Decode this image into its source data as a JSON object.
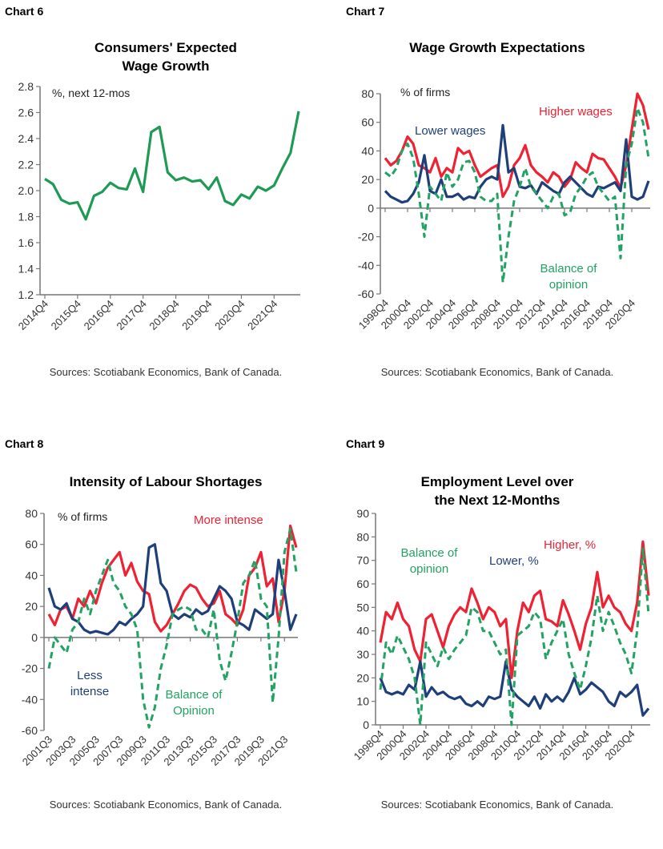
{
  "colors": {
    "green_solid": "#1f9a55",
    "green_dash": "#22a263",
    "red": "#ee2233",
    "blue": "#1f3f7a",
    "axis": "#777777"
  },
  "chart_data": [
    {
      "chart_no": "Chart 6",
      "type": "line",
      "title": [
        "Consumers' Expected",
        "Wage Growth"
      ],
      "ylabel": "%, next 12-mos",
      "ylim": [
        1.2,
        2.8
      ],
      "yticks": [
        "1.2",
        "1.4",
        "1.6",
        "1.8",
        "2.0",
        "2.2",
        "2.4",
        "2.6",
        "2.8"
      ],
      "xtick_labels": [
        "2014Q4",
        "2015Q4",
        "2016Q4",
        "2017Q4",
        "2018Q4",
        "2019Q4",
        "2020Q4",
        "2021Q4"
      ],
      "xtick_every": 4,
      "series": [
        {
          "name": "Expected wage growth",
          "color": "green_solid",
          "dash": false,
          "values": [
            2.09,
            2.05,
            1.93,
            1.9,
            1.91,
            1.78,
            1.96,
            1.99,
            2.06,
            2.02,
            2.01,
            2.17,
            1.99,
            2.45,
            2.49,
            2.14,
            2.08,
            2.1,
            2.07,
            2.08,
            2.01,
            2.1,
            1.92,
            1.89,
            1.97,
            1.94,
            2.03,
            2.0,
            2.04,
            2.17,
            2.29,
            2.61
          ]
        }
      ],
      "annotations": [],
      "source": "Sources: Scotiabank Economics, Bank of Canada."
    },
    {
      "chart_no": "Chart 7",
      "type": "line",
      "title": [
        "Wage Growth Expectations"
      ],
      "ylabel": "% of firms",
      "ylim": [
        -60,
        80
      ],
      "yticks": [
        "-60",
        "-40",
        "-20",
        "0",
        "20",
        "40",
        "60",
        "80"
      ],
      "xtick_labels": [
        "1998Q4",
        "2000Q4",
        "2002Q4",
        "2004Q4",
        "2006Q4",
        "2008Q4",
        "2010Q4",
        "2012Q4",
        "2014Q4",
        "2016Q4",
        "2018Q4",
        "2020Q4"
      ],
      "xtick_every": 4,
      "series": [
        {
          "name": "Higher wages",
          "color": "red",
          "dash": false,
          "values": [
            35,
            30,
            33,
            40,
            50,
            45,
            30,
            28,
            25,
            35,
            22,
            28,
            25,
            42,
            38,
            40,
            30,
            22,
            25,
            28,
            30,
            8,
            15,
            30,
            35,
            44,
            30,
            25,
            22,
            18,
            25,
            22,
            15,
            20,
            32,
            28,
            25,
            38,
            35,
            34,
            28,
            22,
            14,
            30,
            55,
            80,
            72,
            55
          ]
        },
        {
          "name": "Lower wages",
          "color": "blue",
          "dash": false,
          "values": [
            12,
            8,
            6,
            4,
            5,
            10,
            18,
            37,
            12,
            10,
            20,
            8,
            8,
            10,
            6,
            8,
            7,
            15,
            20,
            22,
            20,
            58,
            25,
            28,
            15,
            14,
            16,
            10,
            18,
            15,
            12,
            10,
            18,
            22,
            18,
            14,
            10,
            8,
            15,
            14,
            16,
            18,
            12,
            48,
            8,
            6,
            8,
            19
          ]
        },
        {
          "name": "Balance of opinion",
          "color": "green_dash",
          "dash": true,
          "values": [
            25,
            22,
            28,
            40,
            45,
            35,
            10,
            -20,
            15,
            10,
            5,
            25,
            15,
            20,
            32,
            33,
            25,
            8,
            5,
            5,
            10,
            -52,
            -20,
            5,
            15,
            28,
            15,
            10,
            5,
            0,
            8,
            10,
            -5,
            -3,
            10,
            15,
            22,
            25,
            15,
            10,
            5,
            8,
            -35,
            30,
            45,
            70,
            60,
            35
          ]
        }
      ],
      "annotations": [
        {
          "lines": [
            "Higher wages"
          ],
          "color": "red"
        },
        {
          "lines": [
            "Lower wages"
          ],
          "color": "blue"
        },
        {
          "lines": [
            "Balance of",
            "opinion"
          ],
          "color": "green_dash"
        }
      ],
      "source": "Sources: Scotiabank Economics, Bank of Canada."
    },
    {
      "chart_no": "Chart 8",
      "type": "line",
      "title": [
        "Intensity of Labour Shortages"
      ],
      "ylabel": "% of firms",
      "ylim": [
        -60,
        80
      ],
      "yticks": [
        "-60",
        "-40",
        "-20",
        "0",
        "20",
        "40",
        "60",
        "80"
      ],
      "xtick_labels": [
        "2001Q3",
        "2003Q3",
        "2005Q3",
        "2007Q3",
        "2009Q3",
        "2011Q3",
        "2013Q3",
        "2015Q3",
        "2017Q3",
        "2019Q3",
        "2021Q3"
      ],
      "xtick_every": 4,
      "series": [
        {
          "name": "More intense",
          "color": "red",
          "dash": false,
          "values": [
            15,
            8,
            18,
            20,
            12,
            25,
            20,
            30,
            22,
            35,
            45,
            50,
            55,
            40,
            48,
            36,
            30,
            28,
            10,
            4,
            8,
            15,
            22,
            30,
            34,
            32,
            25,
            20,
            22,
            30,
            15,
            12,
            8,
            18,
            40,
            45,
            55,
            33,
            38,
            10,
            30,
            72,
            58
          ]
        },
        {
          "name": "Less intense",
          "color": "blue",
          "dash": false,
          "values": [
            32,
            20,
            18,
            22,
            12,
            10,
            5,
            3,
            4,
            3,
            2,
            5,
            10,
            8,
            12,
            15,
            20,
            58,
            60,
            35,
            30,
            15,
            12,
            15,
            13,
            18,
            15,
            17,
            25,
            33,
            30,
            25,
            10,
            8,
            5,
            18,
            15,
            12,
            15,
            50,
            30,
            5,
            15
          ]
        },
        {
          "name": "Balance of Opinion",
          "color": "green_dash",
          "dash": true,
          "values": [
            -20,
            0,
            -5,
            -10,
            5,
            10,
            25,
            15,
            30,
            40,
            50,
            35,
            30,
            20,
            15,
            5,
            -40,
            -58,
            -45,
            -20,
            -5,
            15,
            18,
            20,
            18,
            5,
            5,
            0,
            18,
            -15,
            -28,
            -10,
            10,
            35,
            40,
            50,
            25,
            20,
            -42,
            0,
            55,
            70,
            42
          ]
        }
      ],
      "annotations": [
        {
          "lines": [
            "More intense"
          ],
          "color": "red"
        },
        {
          "lines": [
            "Less",
            "intense"
          ],
          "color": "blue"
        },
        {
          "lines": [
            "Balance of",
            "Opinion"
          ],
          "color": "green_dash"
        }
      ],
      "source": "Sources: Scotiabank Economics, Bank of Canada."
    },
    {
      "chart_no": "Chart 9",
      "type": "line",
      "title": [
        "Employment Level over",
        "the Next 12-Months"
      ],
      "ylabel": "",
      "ylim": [
        0,
        90
      ],
      "yticks": [
        "0",
        "10",
        "20",
        "30",
        "40",
        "50",
        "60",
        "70",
        "80",
        "90"
      ],
      "xtick_labels": [
        "1998Q4",
        "2000Q4",
        "2002Q4",
        "2004Q4",
        "2006Q4",
        "2008Q4",
        "2010Q4",
        "2012Q4",
        "2014Q4",
        "2016Q4",
        "2018Q4",
        "2020Q4"
      ],
      "xtick_every": 4,
      "series": [
        {
          "name": "Higher, %",
          "color": "red",
          "dash": false,
          "values": [
            35,
            48,
            45,
            52,
            45,
            42,
            32,
            27,
            45,
            47,
            40,
            33,
            42,
            47,
            50,
            48,
            58,
            52,
            45,
            50,
            48,
            42,
            45,
            20,
            40,
            52,
            48,
            55,
            57,
            45,
            44,
            42,
            53,
            47,
            40,
            32,
            43,
            50,
            65,
            50,
            55,
            50,
            48,
            43,
            40,
            52,
            78,
            55
          ]
        },
        {
          "name": "Lower, %",
          "color": "blue",
          "dash": false,
          "values": [
            20,
            14,
            13,
            14,
            13,
            17,
            15,
            27,
            12,
            16,
            13,
            14,
            12,
            11,
            12,
            9,
            8,
            10,
            8,
            12,
            11,
            12,
            27,
            15,
            12,
            10,
            8,
            12,
            7,
            13,
            10,
            12,
            10,
            14,
            20,
            13,
            15,
            18,
            16,
            14,
            10,
            8,
            14,
            12,
            14,
            17,
            4,
            7
          ]
        },
        {
          "name": "Balance of opinion",
          "color": "green_dash",
          "dash": true,
          "values": [
            15,
            35,
            30,
            38,
            33,
            28,
            20,
            0,
            35,
            30,
            25,
            33,
            28,
            32,
            35,
            38,
            50,
            48,
            40,
            40,
            35,
            30,
            32,
            0,
            38,
            40,
            42,
            48,
            45,
            28,
            35,
            40,
            45,
            30,
            22,
            15,
            25,
            37,
            55,
            40,
            48,
            42,
            35,
            30,
            22,
            40,
            75,
            47
          ]
        }
      ],
      "annotations": [
        {
          "lines": [
            "Balance of",
            "opinion"
          ],
          "color": "green_dash"
        },
        {
          "lines": [
            "Lower, %"
          ],
          "color": "blue"
        },
        {
          "lines": [
            "Higher, %"
          ],
          "color": "red"
        }
      ],
      "source": "Sources: Scotiabank Economics, Bank of Canada."
    }
  ]
}
